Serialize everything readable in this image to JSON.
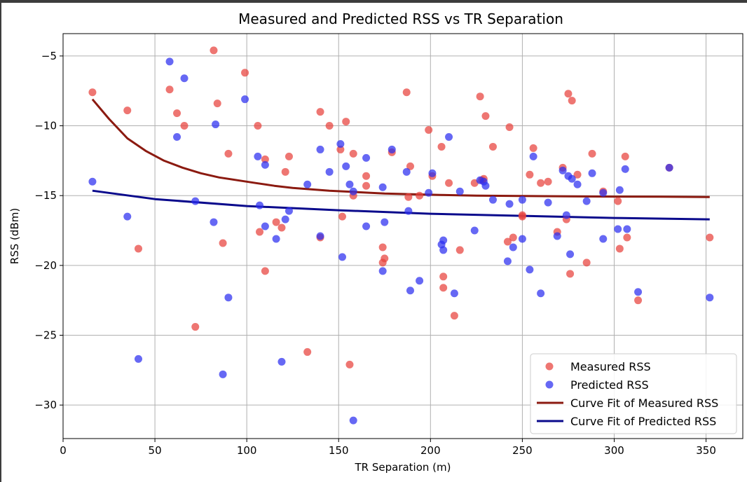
{
  "chart_data": {
    "type": "scatter",
    "title": "Measured and Predicted RSS vs TR Separation",
    "xlabel": "TR Separation (m)",
    "ylabel": "RSS (dBm)",
    "xlim": [
      0,
      370
    ],
    "ylim": [
      -32.4,
      -3.4
    ],
    "xticks": [
      0,
      50,
      100,
      150,
      200,
      250,
      300,
      350
    ],
    "yticks": [
      -30,
      -25,
      -20,
      -15,
      -10,
      -5
    ],
    "grid": true,
    "legend_position": "lower right",
    "series": [
      {
        "name": "Measured RSS",
        "kind": "scatter",
        "color": "#e8413c",
        "points": [
          [
            16,
            -7.6
          ],
          [
            35,
            -8.9
          ],
          [
            41,
            -18.8
          ],
          [
            58,
            -7.4
          ],
          [
            62,
            -9.1
          ],
          [
            66,
            -10
          ],
          [
            72,
            -24.4
          ],
          [
            82,
            -4.6
          ],
          [
            84,
            -8.4
          ],
          [
            87,
            -18.4
          ],
          [
            90,
            -12
          ],
          [
            99,
            -6.2
          ],
          [
            106,
            -10
          ],
          [
            107,
            -17.6
          ],
          [
            110,
            -12.4
          ],
          [
            110,
            -20.4
          ],
          [
            116,
            -16.9
          ],
          [
            119,
            -17.3
          ],
          [
            121,
            -13.3
          ],
          [
            123,
            -12.2
          ],
          [
            133,
            -26.2
          ],
          [
            140,
            -18
          ],
          [
            140,
            -9
          ],
          [
            145,
            -10
          ],
          [
            151,
            -11.7
          ],
          [
            152,
            -16.5
          ],
          [
            154,
            -9.7
          ],
          [
            156,
            -27.1
          ],
          [
            158,
            -12
          ],
          [
            158,
            -15
          ],
          [
            165,
            -13.6
          ],
          [
            165,
            -14.3
          ],
          [
            174,
            -19.8
          ],
          [
            174,
            -18.7
          ],
          [
            175,
            -19.5
          ],
          [
            179,
            -11.9
          ],
          [
            187,
            -7.6
          ],
          [
            188,
            -15.1
          ],
          [
            189,
            -12.9
          ],
          [
            194,
            -15
          ],
          [
            199,
            -10.3
          ],
          [
            201,
            -13.6
          ],
          [
            206,
            -11.5
          ],
          [
            207,
            -20.8
          ],
          [
            207,
            -21.6
          ],
          [
            210,
            -14.1
          ],
          [
            213,
            -23.6
          ],
          [
            216,
            -18.9
          ],
          [
            224,
            -14.1
          ],
          [
            227,
            -7.9
          ],
          [
            228,
            -13.9
          ],
          [
            229,
            -13.8
          ],
          [
            230,
            -9.3
          ],
          [
            234,
            -11.5
          ],
          [
            242,
            -18.3
          ],
          [
            243,
            -10.1
          ],
          [
            245,
            -18
          ],
          [
            250,
            -16.4
          ],
          [
            250,
            -16.5
          ],
          [
            254,
            -13.5
          ],
          [
            256,
            -11.6
          ],
          [
            260,
            -14.1
          ],
          [
            264,
            -14
          ],
          [
            269,
            -17.6
          ],
          [
            272,
            -13
          ],
          [
            274,
            -16.7
          ],
          [
            275,
            -7.7
          ],
          [
            276,
            -20.6
          ],
          [
            277,
            -8.2
          ],
          [
            280,
            -13.5
          ],
          [
            285,
            -19.8
          ],
          [
            288,
            -12
          ],
          [
            294,
            -14.7
          ],
          [
            302,
            -15.4
          ],
          [
            303,
            -18.8
          ],
          [
            306,
            -12.2
          ],
          [
            307,
            -18
          ],
          [
            313,
            -22.5
          ],
          [
            330,
            -13
          ],
          [
            352,
            -18
          ]
        ]
      },
      {
        "name": "Predicted RSS",
        "kind": "scatter",
        "color": "#2b2ef0",
        "points": [
          [
            16,
            -14
          ],
          [
            35,
            -16.5
          ],
          [
            41,
            -26.7
          ],
          [
            58,
            -5.4
          ],
          [
            62,
            -10.8
          ],
          [
            66,
            -6.6
          ],
          [
            72,
            -15.4
          ],
          [
            82,
            -16.9
          ],
          [
            83,
            -9.9
          ],
          [
            87,
            -27.8
          ],
          [
            90,
            -22.3
          ],
          [
            99,
            -8.1
          ],
          [
            106,
            -12.2
          ],
          [
            107,
            -15.7
          ],
          [
            110,
            -12.8
          ],
          [
            110,
            -17.2
          ],
          [
            116,
            -18.1
          ],
          [
            119,
            -26.9
          ],
          [
            121,
            -16.7
          ],
          [
            123,
            -16.1
          ],
          [
            133,
            -14.2
          ],
          [
            140,
            -11.7
          ],
          [
            140,
            -17.9
          ],
          [
            145,
            -13.3
          ],
          [
            151,
            -11.3
          ],
          [
            152,
            -19.4
          ],
          [
            154,
            -12.9
          ],
          [
            156,
            -14.2
          ],
          [
            158,
            -14.7
          ],
          [
            158,
            -31.1
          ],
          [
            165,
            -12.3
          ],
          [
            165,
            -17.2
          ],
          [
            174,
            -14.4
          ],
          [
            174,
            -20.4
          ],
          [
            175,
            -16.9
          ],
          [
            179,
            -11.7
          ],
          [
            187,
            -13.3
          ],
          [
            188,
            -16.1
          ],
          [
            189,
            -21.8
          ],
          [
            194,
            -21.1
          ],
          [
            199,
            -14.8
          ],
          [
            201,
            -13.4
          ],
          [
            206,
            -18.5
          ],
          [
            207,
            -18.2
          ],
          [
            207,
            -18.9
          ],
          [
            210,
            -10.8
          ],
          [
            213,
            -22
          ],
          [
            216,
            -14.7
          ],
          [
            224,
            -17.5
          ],
          [
            227,
            -13.9
          ],
          [
            229,
            -14
          ],
          [
            230,
            -14.3
          ],
          [
            234,
            -15.3
          ],
          [
            242,
            -19.7
          ],
          [
            243,
            -15.6
          ],
          [
            245,
            -18.7
          ],
          [
            250,
            -15.3
          ],
          [
            250,
            -18.1
          ],
          [
            254,
            -20.3
          ],
          [
            256,
            -12.2
          ],
          [
            260,
            -22
          ],
          [
            264,
            -15.5
          ],
          [
            269,
            -17.9
          ],
          [
            272,
            -13.2
          ],
          [
            274,
            -16.4
          ],
          [
            275,
            -13.6
          ],
          [
            276,
            -19.2
          ],
          [
            277,
            -13.8
          ],
          [
            280,
            -14.2
          ],
          [
            285,
            -15.4
          ],
          [
            288,
            -13.4
          ],
          [
            294,
            -18.1
          ],
          [
            294,
            -14.8
          ],
          [
            302,
            -17.4
          ],
          [
            303,
            -14.6
          ],
          [
            306,
            -13.1
          ],
          [
            307,
            -17.4
          ],
          [
            313,
            -21.9
          ],
          [
            330,
            -13
          ],
          [
            352,
            -22.3
          ]
        ]
      },
      {
        "name": "Curve Fit of Measured RSS",
        "kind": "line",
        "color": "#8b1a10",
        "x": [
          16,
          25,
          35,
          45,
          55,
          65,
          75,
          85,
          95,
          105,
          115,
          125,
          135,
          145,
          160,
          175,
          190,
          205,
          225,
          250,
          275,
          300,
          325,
          352
        ],
        "y": [
          -8.1,
          -9.5,
          -10.9,
          -11.8,
          -12.5,
          -13,
          -13.4,
          -13.7,
          -13.9,
          -14.1,
          -14.3,
          -14.45,
          -14.55,
          -14.65,
          -14.75,
          -14.85,
          -14.9,
          -14.95,
          -15,
          -15.03,
          -15.05,
          -15.07,
          -15.08,
          -15.1
        ]
      },
      {
        "name": "Curve Fit of Predicted RSS",
        "kind": "line",
        "color": "#0a0a8c",
        "x": [
          16,
          50,
          100,
          150,
          200,
          250,
          300,
          352
        ],
        "y": [
          -14.65,
          -15.25,
          -15.75,
          -16.05,
          -16.3,
          -16.45,
          -16.6,
          -16.7
        ]
      }
    ]
  }
}
